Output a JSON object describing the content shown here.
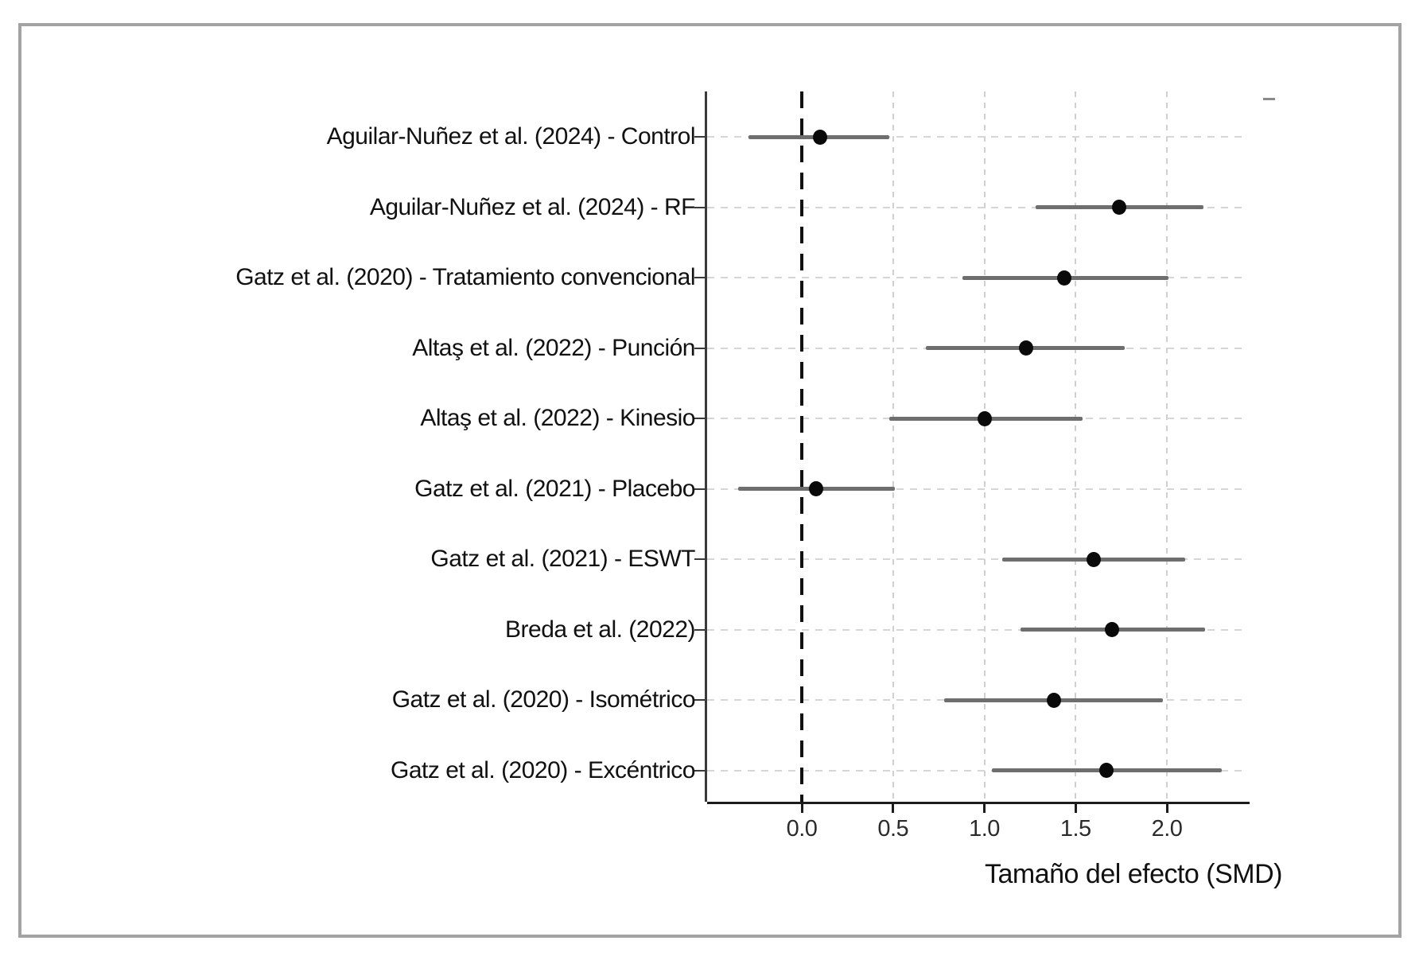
{
  "chart_data": {
    "type": "scatter",
    "subtype": "forest-plot",
    "title": "",
    "xlabel": "Tamaño del efecto (SMD)",
    "ylabel": "",
    "xlim": [
      -0.52,
      2.42
    ],
    "xticks": [
      0.0,
      0.5,
      1.0,
      1.5,
      2.0
    ],
    "xtick_labels": [
      "0.0",
      "0.5",
      "1.0",
      "1.5",
      "2.0"
    ],
    "grid": true,
    "zero_reference_line": 0.0,
    "studies": [
      {
        "label": "Aguilar-Nuñez et al. (2024) - Control",
        "smd": 0.1,
        "ci_low": -0.29,
        "ci_high": 0.48
      },
      {
        "label": "Aguilar-Nuñez et al. (2024) - RF",
        "smd": 1.74,
        "ci_low": 1.28,
        "ci_high": 2.2
      },
      {
        "label": "Gatz et al. (2020) - Tratamiento convencional",
        "smd": 1.44,
        "ci_low": 0.88,
        "ci_high": 2.01
      },
      {
        "label": "Altaş et al. (2022) - Punción",
        "smd": 1.23,
        "ci_low": 0.68,
        "ci_high": 1.77
      },
      {
        "label": "Altaş et al. (2022) - Kinesio",
        "smd": 1.0,
        "ci_low": 0.48,
        "ci_high": 1.54
      },
      {
        "label": "Gatz et al. (2021) - Placebo",
        "smd": 0.08,
        "ci_low": -0.35,
        "ci_high": 0.51
      },
      {
        "label": "Gatz et al. (2021) - ESWT",
        "smd": 1.6,
        "ci_low": 1.1,
        "ci_high": 2.1
      },
      {
        "label": "Breda et al. (2022)",
        "smd": 1.7,
        "ci_low": 1.2,
        "ci_high": 2.21
      },
      {
        "label": "Gatz et al. (2020) - Isométrico",
        "smd": 1.38,
        "ci_low": 0.78,
        "ci_high": 1.98
      },
      {
        "label": "Gatz et al. (2020) - Excéntrico",
        "smd": 1.67,
        "ci_low": 1.04,
        "ci_high": 2.3
      }
    ],
    "style": {
      "marker_color": "#0a0a0a",
      "ci_color": "#6e6e6e",
      "gridline_color": "#d0d0d0",
      "zero_line_color": "#111111",
      "axis_color": "#1c1c1c",
      "frame_border_color": "#a3a3a3",
      "background": "#ffffff"
    }
  }
}
